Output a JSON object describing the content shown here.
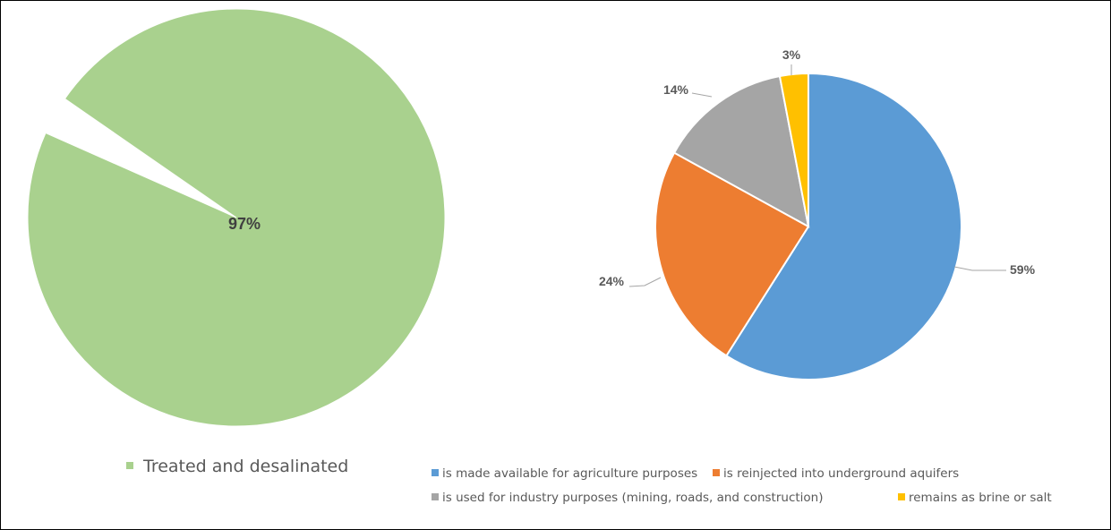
{
  "chart_data": [
    {
      "type": "pie",
      "slices": [
        {
          "name": "Treated and desalinated",
          "value": 97,
          "label": "97%",
          "color": "#a9d18e"
        },
        {
          "name": "",
          "value": 3,
          "label": "",
          "color": "#ffffff"
        }
      ],
      "legend": [
        "Treated and desalinated"
      ],
      "legend_position": "bottom"
    },
    {
      "type": "pie",
      "slices": [
        {
          "name": "is made available for agriculture purposes",
          "value": 59,
          "label": "59%",
          "color": "#5b9bd5"
        },
        {
          "name": "is reinjected into underground aquifers",
          "value": 24,
          "label": "24%",
          "color": "#ed7d31"
        },
        {
          "name": "is used for industry purposes (mining, roads, and construction)",
          "value": 14,
          "label": "14%",
          "color": "#a5a5a5"
        },
        {
          "name": "remains as brine or salt",
          "value": 3,
          "label": "3%",
          "color": "#ffc000"
        }
      ],
      "legend": [
        "is made available for agriculture purposes",
        "is reinjected into underground aquifers",
        "is used for industry purposes (mining, roads, and construction)",
        "remains as brine or salt"
      ],
      "legend_position": "bottom"
    }
  ]
}
